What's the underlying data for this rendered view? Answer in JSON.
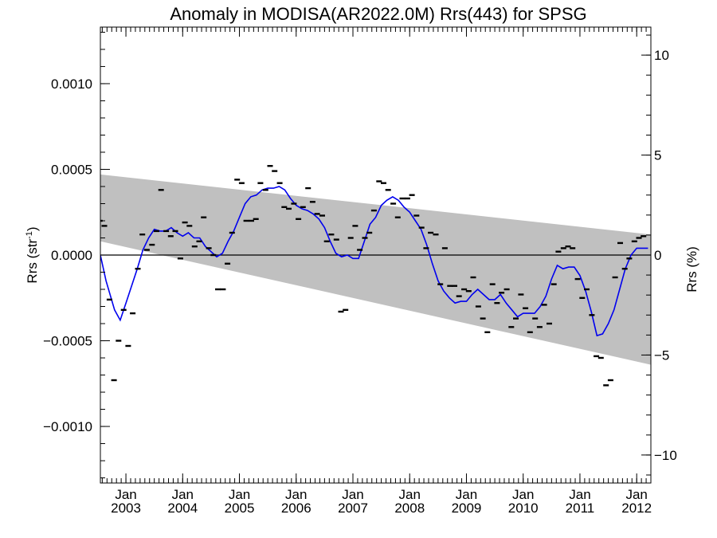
{
  "chart_data": {
    "type": "scatter",
    "title": "Anomaly in MODISA(AR2022.0M) Rrs(443) for SPSG",
    "ylabel": "Rrs (str",
    "ylabel_sup": "-1",
    "ylabel_close": ")",
    "y2label": "Rrs (%)",
    "xlim": [
      2002.55,
      2012.25
    ],
    "ylim": [
      -0.00133,
      0.00133
    ],
    "y2lim": [
      -11.4,
      11.4
    ],
    "y_ticks": [
      {
        "value": 0.001,
        "label": "0.0010"
      },
      {
        "value": 0.0005,
        "label": "0.0005"
      },
      {
        "value": 0.0,
        "label": "0.0000"
      },
      {
        "value": -0.0005,
        "label": "−0.0005"
      },
      {
        "value": -0.001,
        "label": "−0.0010"
      }
    ],
    "y2_ticks": [
      {
        "value": 10,
        "label": "10"
      },
      {
        "value": 5,
        "label": "5"
      },
      {
        "value": 0,
        "label": "0"
      },
      {
        "value": -5,
        "label": "−5"
      },
      {
        "value": -10,
        "label": "−10"
      }
    ],
    "x_ticks": [
      {
        "value": 2003.0,
        "month": "Jan",
        "year": "2003"
      },
      {
        "value": 2004.0,
        "month": "Jan",
        "year": "2004"
      },
      {
        "value": 2005.0,
        "month": "Jan",
        "year": "2005"
      },
      {
        "value": 2006.0,
        "month": "Jan",
        "year": "2006"
      },
      {
        "value": 2007.0,
        "month": "Jan",
        "year": "2007"
      },
      {
        "value": 2008.0,
        "month": "Jan",
        "year": "2008"
      },
      {
        "value": 2009.0,
        "month": "Jan",
        "year": "2009"
      },
      {
        "value": 2010.0,
        "month": "Jan",
        "year": "2010"
      },
      {
        "value": 2011.0,
        "month": "Jan",
        "year": "2011"
      },
      {
        "value": 2012.0,
        "month": "Jan",
        "year": "2012"
      }
    ],
    "band": {
      "upper": [
        [
          2002.55,
          0.00047
        ],
        [
          2012.25,
          0.00012
        ]
      ],
      "lower": [
        [
          2002.55,
          8e-05
        ],
        [
          2012.25,
          -0.00064
        ]
      ]
    },
    "zero_line": 0,
    "points": [
      {
        "x": 2002.54,
        "y": 0.0002
      },
      {
        "x": 2002.62,
        "y": 0.00017
      },
      {
        "x": 2002.71,
        "y": -0.00026
      },
      {
        "x": 2002.79,
        "y": -0.00073
      },
      {
        "x": 2002.87,
        "y": -0.0005
      },
      {
        "x": 2002.96,
        "y": -0.00032
      },
      {
        "x": 2003.04,
        "y": -0.00053
      },
      {
        "x": 2003.12,
        "y": -0.00034
      },
      {
        "x": 2003.21,
        "y": -8e-05
      },
      {
        "x": 2003.29,
        "y": 0.00012
      },
      {
        "x": 2003.37,
        "y": 3e-05
      },
      {
        "x": 2003.46,
        "y": 6e-05
      },
      {
        "x": 2003.54,
        "y": 0.00014
      },
      {
        "x": 2003.62,
        "y": 0.00038
      },
      {
        "x": 2003.71,
        "y": 0.00014
      },
      {
        "x": 2003.79,
        "y": 0.00011
      },
      {
        "x": 2003.87,
        "y": 0.00014
      },
      {
        "x": 2003.96,
        "y": -2e-05
      },
      {
        "x": 2004.04,
        "y": 0.00019
      },
      {
        "x": 2004.12,
        "y": 0.00017
      },
      {
        "x": 2004.21,
        "y": 5e-05
      },
      {
        "x": 2004.29,
        "y": 8e-05
      },
      {
        "x": 2004.37,
        "y": 0.00022
      },
      {
        "x": 2004.46,
        "y": 4e-05
      },
      {
        "x": 2004.54,
        "y": 0.0
      },
      {
        "x": 2004.62,
        "y": -0.0002
      },
      {
        "x": 2004.71,
        "y": -0.0002
      },
      {
        "x": 2004.79,
        "y": -5e-05
      },
      {
        "x": 2004.87,
        "y": 0.00013
      },
      {
        "x": 2004.96,
        "y": 0.00044
      },
      {
        "x": 2005.04,
        "y": 0.00042
      },
      {
        "x": 2005.12,
        "y": 0.0002
      },
      {
        "x": 2005.21,
        "y": 0.0002
      },
      {
        "x": 2005.29,
        "y": 0.00021
      },
      {
        "x": 2005.37,
        "y": 0.00042
      },
      {
        "x": 2005.46,
        "y": 0.00038
      },
      {
        "x": 2005.54,
        "y": 0.00052
      },
      {
        "x": 2005.62,
        "y": 0.00049
      },
      {
        "x": 2005.71,
        "y": 0.00042
      },
      {
        "x": 2005.79,
        "y": 0.00028
      },
      {
        "x": 2005.87,
        "y": 0.00027
      },
      {
        "x": 2005.96,
        "y": 0.0003
      },
      {
        "x": 2006.04,
        "y": 0.00021
      },
      {
        "x": 2006.12,
        "y": 0.00028
      },
      {
        "x": 2006.21,
        "y": 0.00039
      },
      {
        "x": 2006.29,
        "y": 0.00031
      },
      {
        "x": 2006.37,
        "y": 0.00024
      },
      {
        "x": 2006.46,
        "y": 0.00023
      },
      {
        "x": 2006.54,
        "y": 8e-05
      },
      {
        "x": 2006.62,
        "y": 0.00012
      },
      {
        "x": 2006.71,
        "y": 9e-05
      },
      {
        "x": 2006.79,
        "y": -0.00033
      },
      {
        "x": 2006.87,
        "y": -0.00032
      },
      {
        "x": 2006.96,
        "y": 0.0001
      },
      {
        "x": 2007.04,
        "y": 0.00017
      },
      {
        "x": 2007.12,
        "y": 3e-05
      },
      {
        "x": 2007.21,
        "y": 0.0001
      },
      {
        "x": 2007.29,
        "y": 0.00013
      },
      {
        "x": 2007.37,
        "y": 0.00026
      },
      {
        "x": 2007.46,
        "y": 0.00043
      },
      {
        "x": 2007.54,
        "y": 0.00042
      },
      {
        "x": 2007.62,
        "y": 0.00038
      },
      {
        "x": 2007.71,
        "y": 0.0003
      },
      {
        "x": 2007.79,
        "y": 0.00022
      },
      {
        "x": 2007.87,
        "y": 0.00033
      },
      {
        "x": 2007.96,
        "y": 0.00033
      },
      {
        "x": 2008.04,
        "y": 0.00035
      },
      {
        "x": 2008.12,
        "y": 0.00023
      },
      {
        "x": 2008.21,
        "y": 0.00016
      },
      {
        "x": 2008.29,
        "y": 4e-05
      },
      {
        "x": 2008.37,
        "y": 0.00013
      },
      {
        "x": 2008.46,
        "y": 0.00012
      },
      {
        "x": 2008.54,
        "y": -0.00017
      },
      {
        "x": 2008.62,
        "y": 4e-05
      },
      {
        "x": 2008.71,
        "y": -0.00018
      },
      {
        "x": 2008.79,
        "y": -0.00018
      },
      {
        "x": 2008.87,
        "y": -0.00024
      },
      {
        "x": 2008.96,
        "y": -0.0002
      },
      {
        "x": 2009.04,
        "y": -0.00021
      },
      {
        "x": 2009.12,
        "y": -0.00013
      },
      {
        "x": 2009.21,
        "y": -0.0003
      },
      {
        "x": 2009.29,
        "y": -0.00037
      },
      {
        "x": 2009.37,
        "y": -0.00045
      },
      {
        "x": 2009.46,
        "y": -0.00017
      },
      {
        "x": 2009.54,
        "y": -0.00028
      },
      {
        "x": 2009.62,
        "y": -0.00022
      },
      {
        "x": 2009.71,
        "y": -0.0002
      },
      {
        "x": 2009.79,
        "y": -0.00042
      },
      {
        "x": 2009.87,
        "y": -0.00037
      },
      {
        "x": 2009.96,
        "y": -0.00023
      },
      {
        "x": 2010.04,
        "y": -0.00031
      },
      {
        "x": 2010.12,
        "y": -0.00045
      },
      {
        "x": 2010.21,
        "y": -0.00037
      },
      {
        "x": 2010.29,
        "y": -0.00042
      },
      {
        "x": 2010.37,
        "y": -0.00029
      },
      {
        "x": 2010.46,
        "y": -0.0004
      },
      {
        "x": 2010.54,
        "y": -0.00017
      },
      {
        "x": 2010.62,
        "y": 2e-05
      },
      {
        "x": 2010.71,
        "y": 4e-05
      },
      {
        "x": 2010.79,
        "y": 5e-05
      },
      {
        "x": 2010.87,
        "y": 4e-05
      },
      {
        "x": 2010.96,
        "y": -0.00014
      },
      {
        "x": 2011.04,
        "y": -0.00025
      },
      {
        "x": 2011.12,
        "y": -0.0002
      },
      {
        "x": 2011.21,
        "y": -0.00035
      },
      {
        "x": 2011.29,
        "y": -0.00059
      },
      {
        "x": 2011.37,
        "y": -0.0006
      },
      {
        "x": 2011.46,
        "y": -0.00076
      },
      {
        "x": 2011.54,
        "y": -0.00073
      },
      {
        "x": 2011.62,
        "y": -0.00013
      },
      {
        "x": 2011.71,
        "y": 7e-05
      },
      {
        "x": 2011.79,
        "y": -8e-05
      },
      {
        "x": 2011.87,
        "y": -2e-05
      },
      {
        "x": 2011.96,
        "y": 8e-05
      },
      {
        "x": 2012.04,
        "y": 0.0001
      },
      {
        "x": 2012.12,
        "y": 0.00011
      }
    ],
    "smooth": [
      [
        2002.55,
        0.0
      ],
      [
        2002.65,
        -0.00015
      ],
      [
        2002.8,
        -0.00032
      ],
      [
        2002.9,
        -0.00038
      ],
      [
        2003.0,
        -0.00028
      ],
      [
        2003.1,
        -0.00018
      ],
      [
        2003.2,
        -8e-05
      ],
      [
        2003.3,
        3e-05
      ],
      [
        2003.4,
        0.0001
      ],
      [
        2003.5,
        0.00015
      ],
      [
        2003.6,
        0.00014
      ],
      [
        2003.7,
        0.00014
      ],
      [
        2003.8,
        0.00016
      ],
      [
        2003.9,
        0.00013
      ],
      [
        2004.0,
        0.00011
      ],
      [
        2004.1,
        0.00013
      ],
      [
        2004.2,
        0.0001
      ],
      [
        2004.3,
        0.0001
      ],
      [
        2004.4,
        5e-05
      ],
      [
        2004.5,
        2e-05
      ],
      [
        2004.6,
        -1e-05
      ],
      [
        2004.7,
        1e-05
      ],
      [
        2004.8,
        8e-05
      ],
      [
        2004.9,
        0.00014
      ],
      [
        2005.0,
        0.00022
      ],
      [
        2005.1,
        0.0003
      ],
      [
        2005.2,
        0.00034
      ],
      [
        2005.3,
        0.00035
      ],
      [
        2005.4,
        0.00038
      ],
      [
        2005.5,
        0.00039
      ],
      [
        2005.6,
        0.00039
      ],
      [
        2005.7,
        0.0004
      ],
      [
        2005.8,
        0.00038
      ],
      [
        2005.9,
        0.00033
      ],
      [
        2006.0,
        0.00029
      ],
      [
        2006.1,
        0.00027
      ],
      [
        2006.2,
        0.00026
      ],
      [
        2006.3,
        0.00024
      ],
      [
        2006.4,
        0.00021
      ],
      [
        2006.5,
        0.00016
      ],
      [
        2006.6,
        8e-05
      ],
      [
        2006.7,
        1e-05
      ],
      [
        2006.8,
        -1e-05
      ],
      [
        2006.9,
        0.0
      ],
      [
        2007.0,
        -2e-05
      ],
      [
        2007.1,
        -2e-05
      ],
      [
        2007.2,
        8e-05
      ],
      [
        2007.3,
        0.00018
      ],
      [
        2007.4,
        0.00022
      ],
      [
        2007.5,
        0.00029
      ],
      [
        2007.6,
        0.00032
      ],
      [
        2007.7,
        0.00034
      ],
      [
        2007.8,
        0.00032
      ],
      [
        2007.9,
        0.00028
      ],
      [
        2008.0,
        0.00025
      ],
      [
        2008.1,
        0.0002
      ],
      [
        2008.2,
        0.00015
      ],
      [
        2008.3,
        6e-05
      ],
      [
        2008.4,
        -5e-05
      ],
      [
        2008.5,
        -0.00015
      ],
      [
        2008.6,
        -0.00021
      ],
      [
        2008.7,
        -0.00025
      ],
      [
        2008.8,
        -0.00028
      ],
      [
        2008.9,
        -0.00027
      ],
      [
        2009.0,
        -0.00027
      ],
      [
        2009.1,
        -0.00023
      ],
      [
        2009.2,
        -0.0002
      ],
      [
        2009.3,
        -0.00023
      ],
      [
        2009.4,
        -0.00026
      ],
      [
        2009.5,
        -0.00026
      ],
      [
        2009.6,
        -0.00023
      ],
      [
        2009.7,
        -0.00028
      ],
      [
        2009.8,
        -0.00032
      ],
      [
        2009.9,
        -0.00036
      ],
      [
        2010.0,
        -0.00034
      ],
      [
        2010.1,
        -0.00034
      ],
      [
        2010.2,
        -0.00034
      ],
      [
        2010.3,
        -0.0003
      ],
      [
        2010.4,
        -0.00024
      ],
      [
        2010.5,
        -0.00014
      ],
      [
        2010.6,
        -6e-05
      ],
      [
        2010.7,
        -8e-05
      ],
      [
        2010.8,
        -7e-05
      ],
      [
        2010.9,
        -7e-05
      ],
      [
        2011.0,
        -0.00012
      ],
      [
        2011.1,
        -0.00021
      ],
      [
        2011.2,
        -0.00033
      ],
      [
        2011.3,
        -0.00047
      ],
      [
        2011.4,
        -0.00046
      ],
      [
        2011.5,
        -0.0004
      ],
      [
        2011.6,
        -0.00032
      ],
      [
        2011.7,
        -0.0002
      ],
      [
        2011.8,
        -8e-05
      ],
      [
        2011.9,
        0.0
      ],
      [
        2012.0,
        4e-05
      ],
      [
        2012.1,
        4e-05
      ],
      [
        2012.2,
        4e-05
      ]
    ],
    "colors": {
      "band": "#c0c0c0",
      "smooth": "#0000ee",
      "points": "#000000",
      "zero_line": "#000000"
    },
    "grid": false,
    "legend": "none"
  }
}
